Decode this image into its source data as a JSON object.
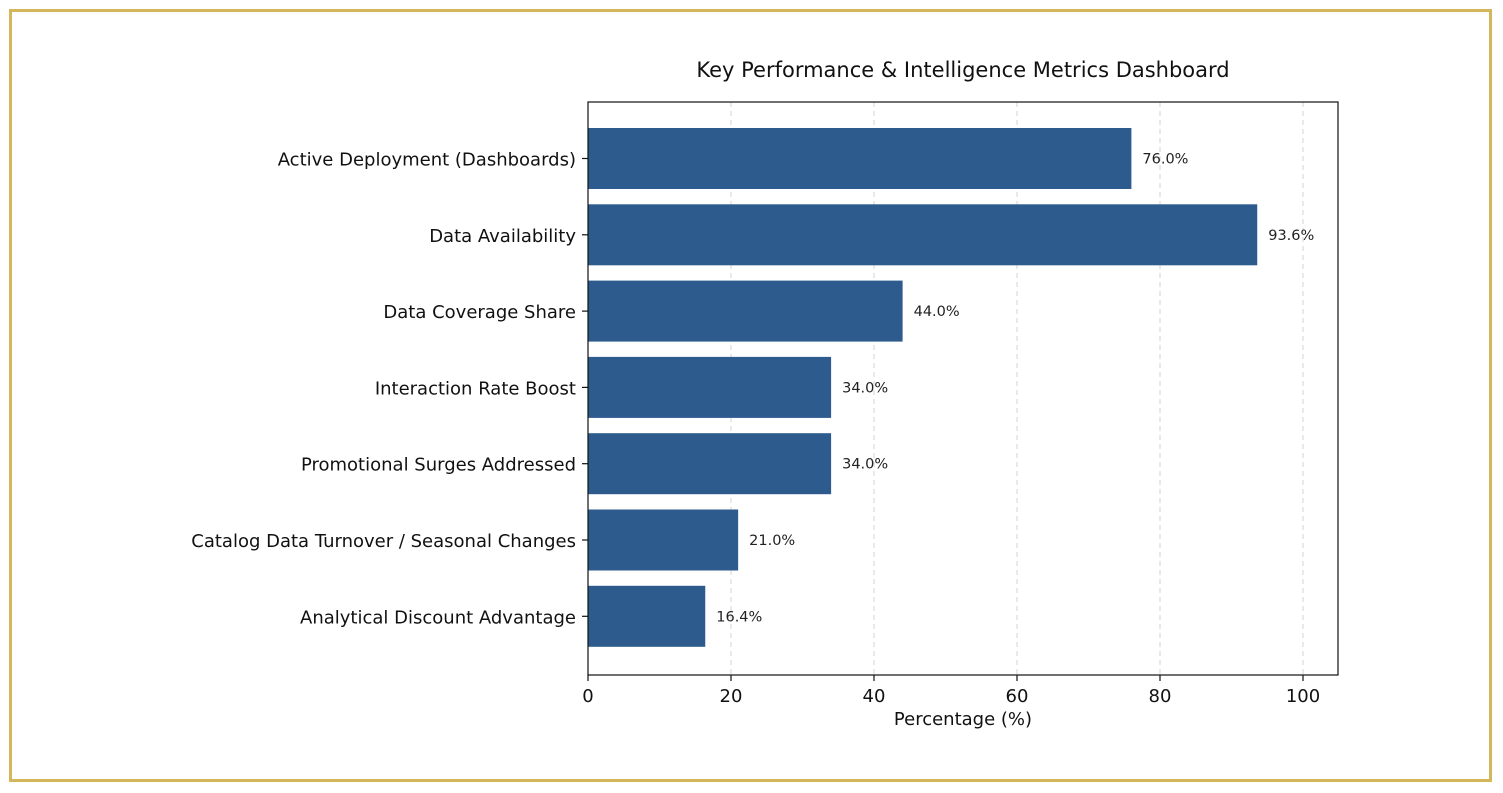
{
  "colors": {
    "bar": "#2d5b8e",
    "frame_border": "#d4b75a",
    "grid": "#d3d3d3",
    "axis": "#111111"
  },
  "chart_data": {
    "type": "bar",
    "orientation": "horizontal",
    "title": "Key Performance & Intelligence Metrics Dashboard",
    "xlabel": "Percentage (%)",
    "ylabel": "",
    "xlim": [
      0,
      105
    ],
    "xticks": [
      0,
      20,
      40,
      60,
      80,
      100
    ],
    "grid": "vertical dashed",
    "categories": [
      "Active Deployment (Dashboards)",
      "Data Availability",
      "Data Coverage Share",
      "Interaction Rate Boost",
      "Promotional Surges Addressed",
      "Catalog Data Turnover / Seasonal Changes",
      "Analytical Discount Advantage"
    ],
    "values": [
      76.0,
      93.6,
      44.0,
      34.0,
      34.0,
      21.0,
      16.4
    ],
    "value_labels": [
      "76.0%",
      "93.6%",
      "44.0%",
      "34.0%",
      "34.0%",
      "21.0%",
      "16.4%"
    ]
  }
}
